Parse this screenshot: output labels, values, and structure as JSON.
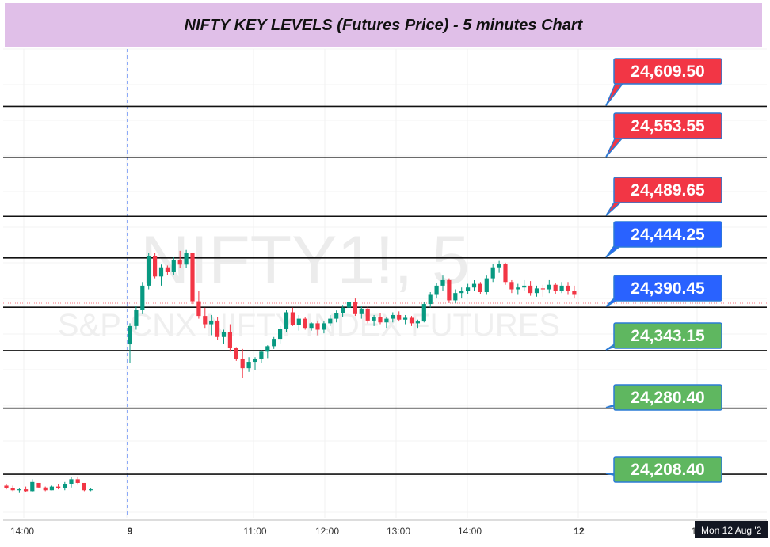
{
  "title": "NIFTY KEY LEVELS (Futures Price) - 5 minutes Chart",
  "watermark": {
    "symbol": "NIFTY1!, 5",
    "description": "S&P CNX NIFTY INDEX FUTURES"
  },
  "crosshair_date": "Mon 12 Aug '2",
  "colors": {
    "resistance": "#f23645",
    "mid": "#2962ff",
    "support": "#5fb760",
    "up_candle": "#089981",
    "down_candle": "#f23645"
  },
  "chart_data": {
    "type": "candlestick",
    "y_range": [
      24161,
      24672
    ],
    "levels": [
      {
        "value": 24609.5,
        "label": "24,609.50",
        "kind": "resistance"
      },
      {
        "value": 24553.55,
        "label": "24,553.55",
        "kind": "resistance"
      },
      {
        "value": 24489.65,
        "label": "24,489.65",
        "kind": "resistance"
      },
      {
        "value": 24444.25,
        "label": "24,444.25",
        "kind": "mid"
      },
      {
        "value": 24390.45,
        "label": "24,390.45",
        "kind": "mid"
      },
      {
        "value": 24343.15,
        "label": "24,343.15",
        "kind": "support"
      },
      {
        "value": 24280.4,
        "label": "24,280.40",
        "kind": "support"
      },
      {
        "value": 24208.4,
        "label": "24,208.40",
        "kind": "support"
      }
    ],
    "x_ticks": [
      "14:00",
      "9",
      "11:00",
      "12:00",
      "13:00",
      "14:00",
      "12",
      "1"
    ],
    "session_separator_after": "9",
    "candles": [
      [
        24196,
        24198,
        24192,
        24193
      ],
      [
        24193,
        24196,
        24190,
        24191
      ],
      [
        24191,
        24193,
        24188,
        24192
      ],
      [
        24192,
        24195,
        24189,
        24190
      ],
      [
        24190,
        24203,
        24189,
        24200
      ],
      [
        24199,
        24199,
        24193,
        24194
      ],
      [
        24194,
        24195,
        24190,
        24191
      ],
      [
        24191,
        24196,
        24191,
        24195
      ],
      [
        24195,
        24198,
        24192,
        24193
      ],
      [
        24193,
        24200,
        24191,
        24198
      ],
      [
        24198,
        24205,
        24194,
        24203
      ],
      [
        24203,
        24206,
        24197,
        24199
      ],
      [
        24199,
        24199,
        24190,
        24191
      ],
      [
        24191,
        24193,
        24190,
        24192
      ],
      [
        24350,
        24373,
        24330,
        24370
      ],
      [
        24370,
        24392,
        24366,
        24388
      ],
      [
        24388,
        24418,
        24383,
        24414
      ],
      [
        24414,
        24450,
        24410,
        24446
      ],
      [
        24446,
        24450,
        24422,
        24424
      ],
      [
        24424,
        24437,
        24414,
        24434
      ],
      [
        24434,
        24436,
        24426,
        24429
      ],
      [
        24429,
        24445,
        24426,
        24442
      ],
      [
        24442,
        24452,
        24433,
        24437
      ],
      [
        24437,
        24453,
        24433,
        24450
      ],
      [
        24450,
        24450,
        24394,
        24397
      ],
      [
        24397,
        24408,
        24378,
        24381
      ],
      [
        24381,
        24390,
        24368,
        24372
      ],
      [
        24372,
        24382,
        24360,
        24376
      ],
      [
        24376,
        24380,
        24355,
        24358
      ],
      [
        24358,
        24366,
        24350,
        24363
      ],
      [
        24363,
        24372,
        24342,
        24346
      ],
      [
        24346,
        24347,
        24332,
        24334
      ],
      [
        24334,
        24345,
        24313,
        24324
      ],
      [
        24324,
        24336,
        24320,
        24331
      ],
      [
        24331,
        24336,
        24322,
        24334
      ],
      [
        24334,
        24344,
        24330,
        24342
      ],
      [
        24342,
        24349,
        24335,
        24348
      ],
      [
        24348,
        24358,
        24345,
        24356
      ],
      [
        24356,
        24370,
        24351,
        24367
      ],
      [
        24367,
        24388,
        24363,
        24385
      ],
      [
        24385,
        24390,
        24370,
        24371
      ],
      [
        24371,
        24382,
        24365,
        24378
      ],
      [
        24378,
        24380,
        24366,
        24368
      ],
      [
        24368,
        24374,
        24365,
        24373
      ],
      [
        24373,
        24376,
        24360,
        24366
      ],
      [
        24366,
        24375,
        24362,
        24373
      ],
      [
        24373,
        24382,
        24370,
        24378
      ],
      [
        24378,
        24387,
        24374,
        24384
      ],
      [
        24384,
        24393,
        24380,
        24390
      ],
      [
        24390,
        24400,
        24385,
        24396
      ],
      [
        24396,
        24400,
        24381,
        24383
      ],
      [
        24383,
        24392,
        24378,
        24389
      ],
      [
        24389,
        24391,
        24373,
        24376
      ],
      [
        24376,
        24382,
        24370,
        24380
      ],
      [
        24380,
        24384,
        24372,
        24374
      ],
      [
        24374,
        24380,
        24368,
        24378
      ],
      [
        24378,
        24385,
        24374,
        24382
      ],
      [
        24382,
        24386,
        24375,
        24377
      ],
      [
        24377,
        24382,
        24372,
        24379
      ],
      [
        24379,
        24381,
        24370,
        24373
      ],
      [
        24373,
        24377,
        24368,
        24375
      ],
      [
        24375,
        24396,
        24374,
        24394
      ],
      [
        24394,
        24407,
        24390,
        24404
      ],
      [
        24404,
        24417,
        24400,
        24414
      ],
      [
        24414,
        24425,
        24408,
        24420
      ],
      [
        24420,
        24422,
        24395,
        24398
      ],
      [
        24398,
        24410,
        24395,
        24406
      ],
      [
        24406,
        24412,
        24400,
        24408
      ],
      [
        24408,
        24416,
        24405,
        24412
      ],
      [
        24412,
        24420,
        24408,
        24416
      ],
      [
        24416,
        24418,
        24405,
        24407
      ],
      [
        24407,
        24425,
        24404,
        24422
      ],
      [
        24422,
        24438,
        24418,
        24434
      ],
      [
        24434,
        24441,
        24428,
        24438
      ],
      [
        24438,
        24439,
        24415,
        24418
      ],
      [
        24418,
        24420,
        24406,
        24410
      ],
      [
        24410,
        24416,
        24404,
        24412
      ],
      [
        24412,
        24420,
        24408,
        24414
      ],
      [
        24414,
        24419,
        24403,
        24406
      ],
      [
        24406,
        24414,
        24402,
        24411
      ],
      [
        24411,
        24415,
        24402,
        24410
      ],
      [
        24410,
        24420,
        24406,
        24415
      ],
      [
        24415,
        24417,
        24405,
        24408
      ],
      [
        24408,
        24418,
        24406,
        24414
      ],
      [
        24414,
        24418,
        24404,
        24408
      ],
      [
        24408,
        24414,
        24400,
        24404
      ]
    ]
  }
}
